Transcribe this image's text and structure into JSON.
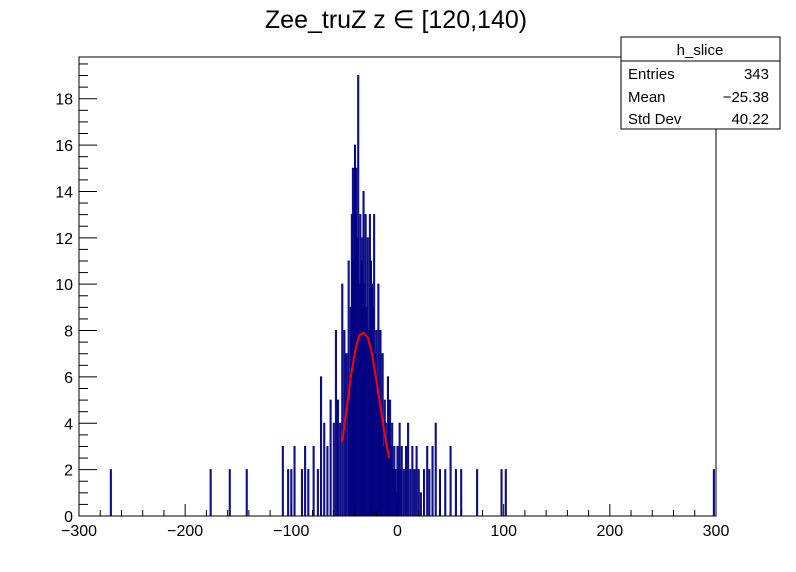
{
  "chart_data": {
    "type": "bar",
    "title": "Zee_truZ z  ∈ [120,140)",
    "xlabel": "",
    "ylabel": "",
    "xlim": [
      -300,
      300
    ],
    "ylim": [
      0,
      19.8
    ],
    "grid": false,
    "x_ticks": [
      "−300",
      "−200",
      "−100",
      "0",
      "100",
      "200",
      "300"
    ],
    "y_ticks": [
      "0",
      "2",
      "4",
      "6",
      "8",
      "10",
      "12",
      "14",
      "16",
      "18"
    ],
    "histogram_color": "#000080",
    "fit_color": "#ff0000",
    "stats_box": {
      "name": "h_slice",
      "rows": [
        {
          "label": "Entries",
          "value": "343"
        },
        {
          "label": "Mean",
          "value": "−25.38"
        },
        {
          "label": "Std Dev",
          "value": "40.22"
        }
      ]
    },
    "series": [
      {
        "x": [
          -270,
          -176,
          -158,
          -142,
          -108,
          -103,
          -100,
          -97,
          -90,
          -87,
          -84,
          -79,
          -75,
          -72,
          -69,
          -66,
          -63,
          -60,
          -58,
          -56,
          -54,
          -52,
          -50,
          -48,
          -46,
          -45,
          -44,
          -43,
          -42,
          -41,
          -40,
          -39,
          -38,
          -37,
          -36,
          -35,
          -34,
          -33,
          -32,
          -31,
          -30,
          -29,
          -28,
          -27,
          -26,
          -25,
          -24,
          -23,
          -22,
          -21,
          -20,
          -19,
          -18,
          -17,
          -16,
          -15,
          -14,
          -13,
          -12,
          -11,
          -10,
          -9,
          -8,
          -7,
          -6,
          -5,
          -4,
          -3,
          -2,
          -1,
          0,
          1,
          2,
          3,
          4,
          6,
          8,
          10,
          12,
          14,
          16,
          18,
          20,
          22,
          25,
          28,
          30,
          33,
          36,
          40,
          45,
          50,
          55,
          60,
          75,
          98,
          102,
          298
        ],
        "values": [
          2,
          2,
          2,
          2,
          3,
          2,
          2,
          3,
          2,
          3,
          2,
          3,
          2,
          6,
          4,
          3,
          5,
          4,
          8,
          5,
          4,
          10,
          8,
          7,
          11,
          5,
          9,
          13,
          15,
          11,
          16,
          15,
          12,
          19,
          10,
          13,
          11,
          12,
          14,
          10,
          13,
          9,
          12,
          8,
          13,
          11,
          10,
          9,
          13,
          7,
          8,
          6,
          10,
          5,
          8,
          4,
          7,
          3,
          5,
          4,
          3,
          6,
          4,
          5,
          3,
          4,
          2,
          3,
          2,
          1,
          3,
          2,
          4,
          2,
          3,
          2,
          3,
          4,
          2,
          3,
          2,
          3,
          2,
          1,
          2,
          3,
          2,
          3,
          4,
          2,
          2,
          3,
          2,
          2,
          2,
          2,
          2,
          2
        ]
      }
    ],
    "fit": {
      "x": [
        -52,
        -48,
        -44,
        -40,
        -36,
        -32,
        -28,
        -24,
        -20,
        -16,
        -12,
        -8
      ],
      "values": [
        3.2,
        4.6,
        6.0,
        7.1,
        7.8,
        7.9,
        7.7,
        7.0,
        5.9,
        4.7,
        3.5,
        2.5
      ]
    }
  }
}
